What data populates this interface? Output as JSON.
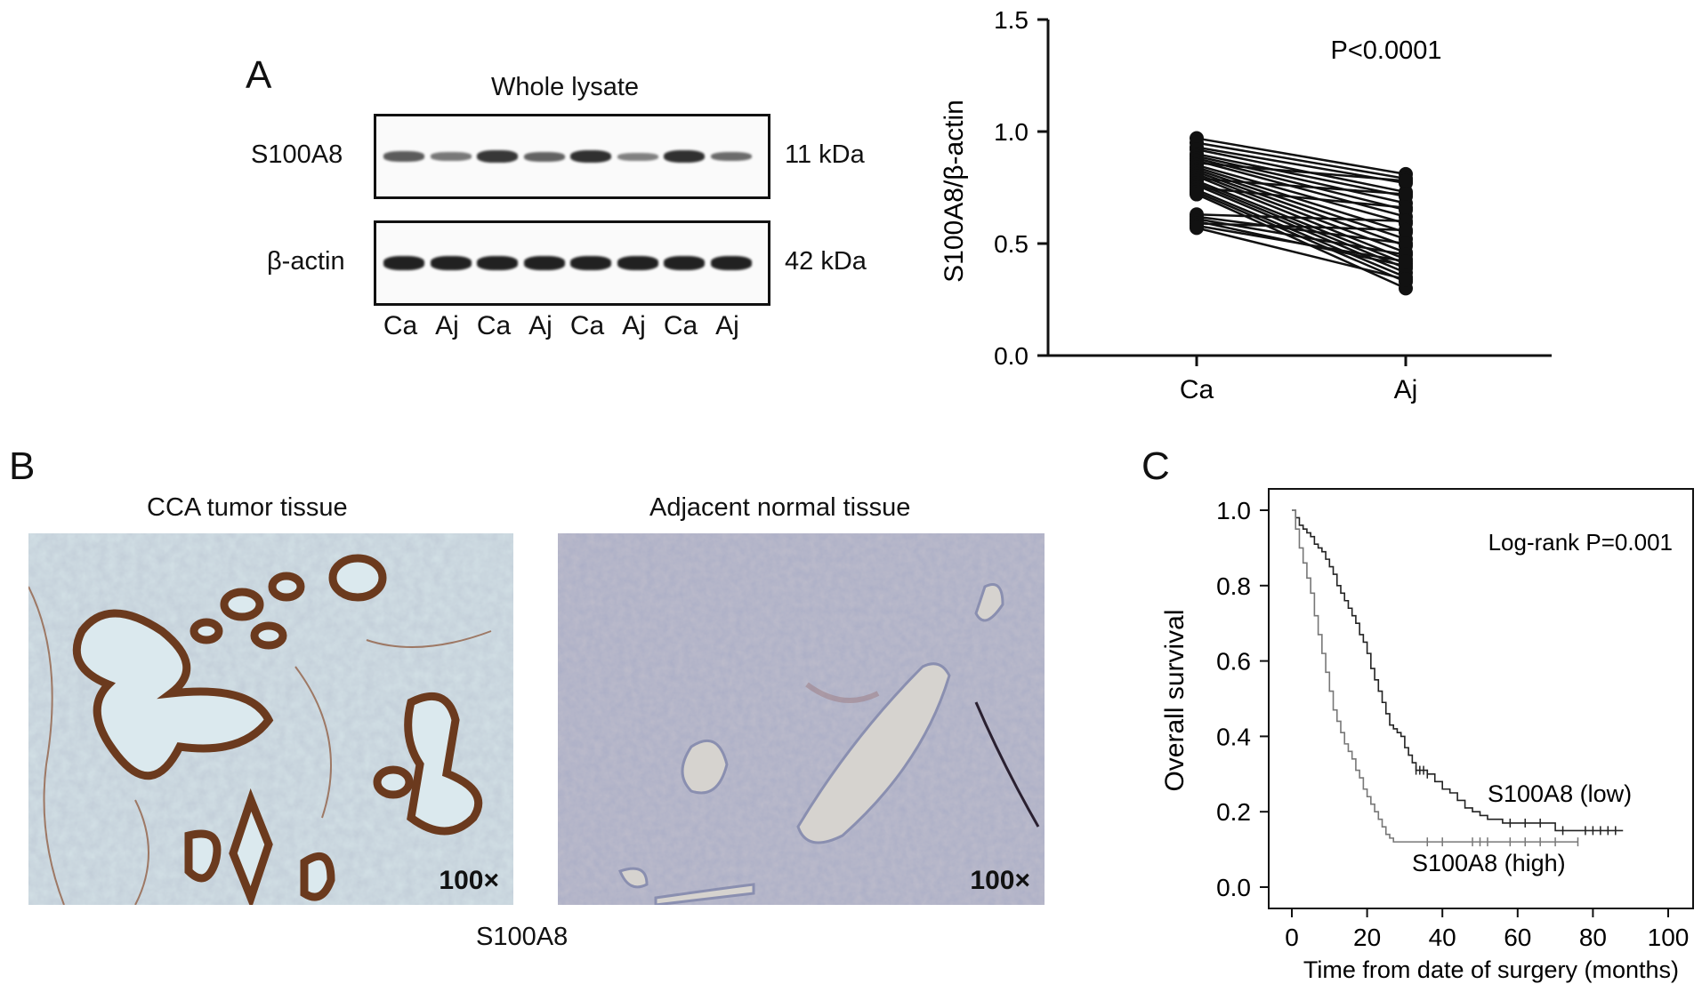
{
  "panels": {
    "a": "A",
    "b": "B",
    "c": "C"
  },
  "western": {
    "title": "Whole lysate",
    "rows": [
      {
        "protein": "S100A8",
        "mw": "11 kDa",
        "intensities": [
          0.55,
          0.35,
          0.8,
          0.5,
          0.85,
          0.3,
          0.85,
          0.45
        ]
      },
      {
        "protein": "β-actin",
        "mw": "42 kDa",
        "intensities": [
          0.95,
          0.95,
          0.95,
          0.95,
          0.95,
          0.95,
          0.95,
          0.95
        ]
      }
    ],
    "lanes": [
      "Ca",
      "Aj",
      "Ca",
      "Aj",
      "Ca",
      "Aj",
      "Ca",
      "Aj"
    ]
  },
  "chart_data": [
    {
      "type": "scatter",
      "subtype": "paired-lines",
      "categories": [
        "Ca",
        "Aj"
      ],
      "ylabel": "S100A8/β-actin",
      "ylim": [
        0,
        1.5
      ],
      "yticks": [
        "0.0",
        "0.5",
        "1.0",
        "1.5"
      ],
      "annotation": "P<0.0001",
      "pairs": [
        [
          0.97,
          0.81
        ],
        [
          0.95,
          0.79
        ],
        [
          0.93,
          0.77
        ],
        [
          0.92,
          0.73
        ],
        [
          0.9,
          0.71
        ],
        [
          0.89,
          0.68
        ],
        [
          0.88,
          0.65
        ],
        [
          0.87,
          0.62
        ],
        [
          0.86,
          0.78
        ],
        [
          0.85,
          0.59
        ],
        [
          0.84,
          0.55
        ],
        [
          0.83,
          0.52
        ],
        [
          0.82,
          0.49
        ],
        [
          0.81,
          0.46
        ],
        [
          0.8,
          0.43
        ],
        [
          0.79,
          0.72
        ],
        [
          0.78,
          0.41
        ],
        [
          0.77,
          0.39
        ],
        [
          0.76,
          0.37
        ],
        [
          0.75,
          0.66
        ],
        [
          0.74,
          0.35
        ],
        [
          0.73,
          0.33
        ],
        [
          0.72,
          0.3
        ],
        [
          0.63,
          0.6
        ],
        [
          0.62,
          0.5
        ],
        [
          0.61,
          0.45
        ],
        [
          0.6,
          0.4
        ],
        [
          0.59,
          0.56
        ],
        [
          0.58,
          0.42
        ],
        [
          0.57,
          0.34
        ]
      ]
    },
    {
      "type": "line",
      "subtype": "kaplan-meier",
      "xlabel": "Time from date of surgery (months)",
      "ylabel": "Overall survival",
      "xlim": [
        0,
        100
      ],
      "ylim": [
        0,
        1.0
      ],
      "xticks": [
        "0",
        "20",
        "40",
        "60",
        "80",
        "100"
      ],
      "yticks": [
        "0.0",
        "0.2",
        "0.4",
        "0.6",
        "0.8",
        "1.0"
      ],
      "annotation": "Log-rank P=0.001",
      "series": [
        {
          "name": "S100A8 (low)",
          "x": [
            0,
            1,
            2,
            3,
            4,
            5,
            6,
            7,
            8,
            9,
            10,
            11,
            12,
            13,
            14,
            15,
            16,
            17,
            18,
            19,
            20,
            21,
            22,
            23,
            24,
            25,
            26,
            27,
            28,
            29,
            30,
            31,
            32,
            33,
            34,
            36,
            38,
            40,
            42,
            44,
            46,
            48,
            50,
            52,
            54,
            56,
            58,
            60,
            62,
            64,
            66,
            68,
            70,
            72,
            74,
            76,
            78,
            80,
            82,
            84,
            86,
            88
          ],
          "y": [
            1.0,
            0.98,
            0.96,
            0.95,
            0.94,
            0.93,
            0.91,
            0.9,
            0.89,
            0.87,
            0.85,
            0.83,
            0.8,
            0.78,
            0.76,
            0.74,
            0.72,
            0.7,
            0.67,
            0.65,
            0.62,
            0.58,
            0.55,
            0.52,
            0.49,
            0.46,
            0.43,
            0.42,
            0.41,
            0.4,
            0.37,
            0.35,
            0.33,
            0.31,
            0.31,
            0.3,
            0.28,
            0.26,
            0.25,
            0.23,
            0.21,
            0.2,
            0.19,
            0.18,
            0.18,
            0.17,
            0.17,
            0.17,
            0.17,
            0.17,
            0.17,
            0.17,
            0.15,
            0.15,
            0.15,
            0.15,
            0.15,
            0.15,
            0.15,
            0.15,
            0.15,
            0.15
          ],
          "censored_x": [
            33,
            34,
            35,
            36,
            58,
            62,
            66,
            72,
            78,
            80,
            82,
            84,
            86
          ]
        },
        {
          "name": "S100A8 (high)",
          "x": [
            0,
            1,
            2,
            3,
            4,
            5,
            6,
            7,
            8,
            9,
            10,
            11,
            12,
            13,
            14,
            15,
            16,
            17,
            18,
            19,
            20,
            21,
            22,
            23,
            24,
            25,
            26,
            27,
            28,
            30,
            32,
            34,
            36,
            40,
            44,
            48,
            52,
            56,
            60,
            64,
            68,
            72,
            76
          ],
          "y": [
            1.0,
            0.95,
            0.9,
            0.86,
            0.82,
            0.78,
            0.72,
            0.67,
            0.62,
            0.57,
            0.52,
            0.47,
            0.44,
            0.41,
            0.38,
            0.36,
            0.34,
            0.31,
            0.29,
            0.26,
            0.24,
            0.22,
            0.2,
            0.18,
            0.16,
            0.14,
            0.13,
            0.12,
            0.12,
            0.12,
            0.12,
            0.12,
            0.12,
            0.12,
            0.12,
            0.12,
            0.12,
            0.12,
            0.12,
            0.12,
            0.12,
            0.12,
            0.12
          ],
          "censored_x": [
            36,
            40,
            48,
            50,
            52,
            58,
            62,
            66,
            70,
            76
          ]
        }
      ]
    }
  ],
  "micrographs": [
    {
      "title": "CCA tumor tissue",
      "magnification": "100×"
    },
    {
      "title": "Adjacent normal tissue",
      "magnification": "100×"
    }
  ],
  "micrograph_caption": "S100A8"
}
